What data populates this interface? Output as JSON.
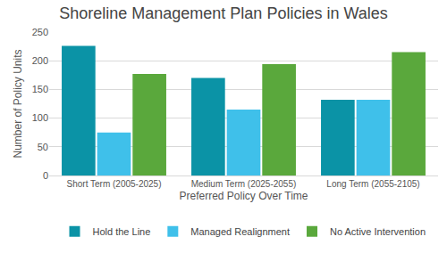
{
  "chart_data": {
    "type": "bar",
    "title": "Shoreline Management Plan Policies in Wales",
    "x_label": "Preferred Policy Over Time",
    "y_label": "Number of Policy Units",
    "categories": [
      "Short Term (2005-2025)",
      "Medium Term (2025-2055)",
      "Long Term (2055-2105)"
    ],
    "series": [
      {
        "name": "Hold the Line",
        "color": "#0b93a6",
        "values": [
          226,
          170,
          132
        ]
      },
      {
        "name": "Managed Realignment",
        "color": "#3fc0ea",
        "values": [
          75,
          115,
          132
        ]
      },
      {
        "name": "No Active Intervention",
        "color": "#5aa83c",
        "values": [
          177,
          194,
          215
        ]
      }
    ],
    "ylim": [
      0,
      250
    ],
    "yticks": [
      0,
      50,
      100,
      150,
      200,
      250
    ],
    "grid": true,
    "legend": "bottom"
  }
}
